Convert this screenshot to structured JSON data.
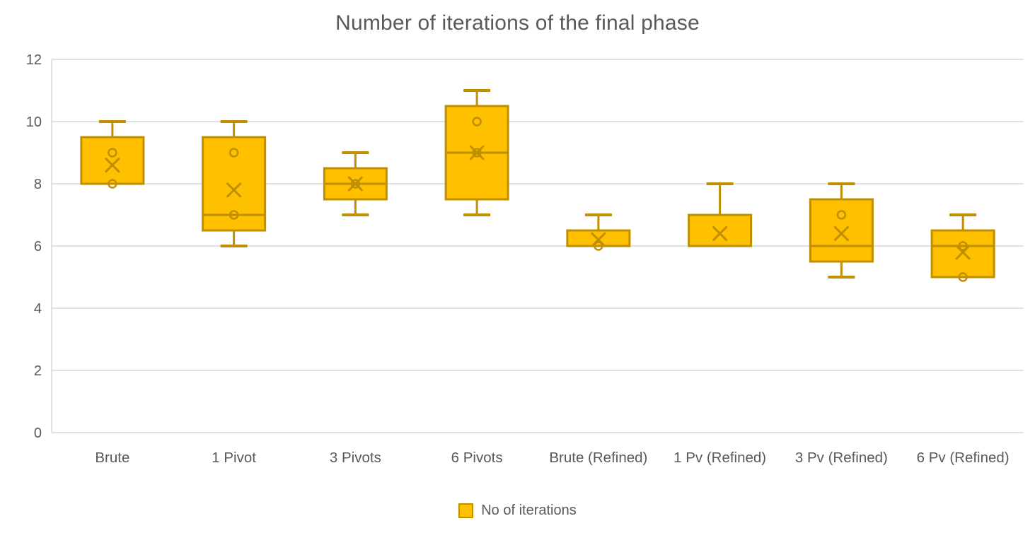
{
  "chart_data": {
    "type": "boxplot",
    "title": "Number of iterations of the final phase",
    "series_name": "No of iterations",
    "legend_position": "bottom",
    "grid": true,
    "xlabel": "",
    "ylabel": "",
    "ylim": [
      0,
      12
    ],
    "yticks": [
      0,
      2,
      4,
      6,
      8,
      10,
      12
    ],
    "categories": [
      "Brute",
      "1 Pivot",
      "3 Pivots",
      "6 Pivots",
      "Brute (Refined)",
      "1 Pv (Refined)",
      "3 Pv (Refined)",
      "6 Pv (Refined)"
    ],
    "boxes": [
      {
        "category": "Brute",
        "min": 8,
        "q1": 8,
        "median": 8,
        "q3": 9.5,
        "max": 10,
        "mean": 8.6,
        "points": [
          9,
          8
        ]
      },
      {
        "category": "1 Pivot",
        "min": 6,
        "q1": 6.5,
        "median": 7,
        "q3": 9.5,
        "max": 10,
        "mean": 7.8,
        "points": [
          9,
          7
        ]
      },
      {
        "category": "3 Pivots",
        "min": 7,
        "q1": 7.5,
        "median": 8,
        "q3": 8.5,
        "max": 9,
        "mean": 8,
        "points": [
          8
        ]
      },
      {
        "category": "6 Pivots",
        "min": 7,
        "q1": 7.5,
        "median": 9,
        "q3": 10.5,
        "max": 11,
        "mean": 9,
        "points": [
          10,
          9
        ]
      },
      {
        "category": "Brute (Refined)",
        "min": 6,
        "q1": 6,
        "median": 6,
        "q3": 6.5,
        "max": 7,
        "mean": 6.2,
        "points": [
          6
        ]
      },
      {
        "category": "1 Pv (Refined)",
        "min": 6,
        "q1": 6,
        "median": 6,
        "q3": 7,
        "max": 8,
        "mean": 6.4,
        "points": []
      },
      {
        "category": "3 Pv (Refined)",
        "min": 5,
        "q1": 5.5,
        "median": 6,
        "q3": 7.5,
        "max": 8,
        "mean": 6.4,
        "points": [
          7
        ]
      },
      {
        "category": "6 Pv (Refined)",
        "min": 5,
        "q1": 5,
        "median": 6,
        "q3": 6.5,
        "max": 7,
        "mean": 5.8,
        "points": [
          6,
          5
        ]
      }
    ],
    "colors": {
      "box_fill": "#FFC000",
      "box_stroke": "#BF8F00",
      "gridline": "#D9D9D9",
      "axis_line": "#D9D9D9",
      "text": "#595959"
    }
  }
}
